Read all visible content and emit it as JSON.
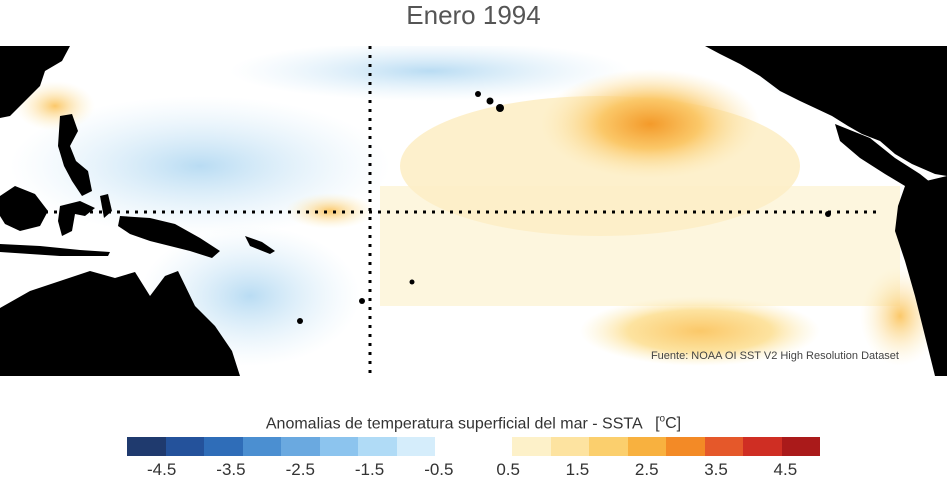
{
  "title": "Enero 1994",
  "source_note": "Fuente: NOAA OI SST V2 High Resolution Dataset",
  "colorbar": {
    "title": "Anomalias de temperatura superficial del mar - SSTA",
    "unit_open": "[",
    "unit_deg": "o",
    "unit_close": "C]",
    "colors": [
      "#1f3a6e",
      "#24529b",
      "#2f6db8",
      "#4b8fd1",
      "#6aa9e0",
      "#8cc4ee",
      "#b0dbf6",
      "#d5edfb",
      "#ffffff",
      "#ffffff",
      "#fdf1c9",
      "#fde3a0",
      "#fbcf6d",
      "#f8b13f",
      "#f38a26",
      "#e5582a",
      "#cf2e23",
      "#aa1a1a"
    ],
    "tick_labels": [
      "-4.5",
      "-3.5",
      "-2.5",
      "-1.5",
      "-0.5",
      "0.5",
      "1.5",
      "2.5",
      "3.5",
      "4.5"
    ],
    "range": [
      -5,
      5
    ],
    "tick_values": [
      -4.5,
      -3.5,
      -2.5,
      -1.5,
      -0.5,
      0.5,
      1.5,
      2.5,
      3.5,
      4.5
    ]
  },
  "colors": {
    "land": "#000000",
    "ocean_neutral": "#ffffff",
    "cool_anomaly": "#cfe6f7",
    "warm_anomaly": "#fde9b3",
    "warm_peak": "#f5a23a",
    "reference_lines": "#000000"
  },
  "reference_lines": [
    "equator",
    "date-line-180"
  ]
}
